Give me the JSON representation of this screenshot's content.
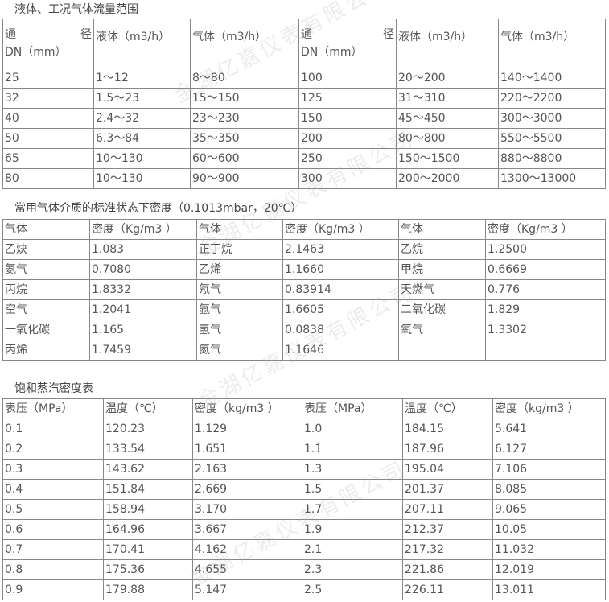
{
  "watermark": "金湖亿嘉仪表有限公司",
  "flow": {
    "title": "液体、工况气体流量范围",
    "headers": {
      "dn_top_left": "通",
      "dn_top_right": "径",
      "dn_bottom": "DN（mm）",
      "liquid": "液体（m3/h）",
      "gas": "气体（m3/h）"
    },
    "rows": [
      [
        "25",
        "1～12",
        "8～80",
        "100",
        "20～200",
        "140～1400"
      ],
      [
        "32",
        "1.5～23",
        "15～150",
        "125",
        "31～310",
        "220～2200"
      ],
      [
        "40",
        "2.4～32",
        "23～230",
        "150",
        "45～450",
        "300～3000"
      ],
      [
        "50",
        "6.3～84",
        "35～350",
        "200",
        "80～800",
        "550～5500"
      ],
      [
        "65",
        "10～130",
        "60～600",
        "250",
        "150～1500",
        "880～8800"
      ],
      [
        "80",
        "10～130",
        "90～900",
        "300",
        "200～2000",
        "1300～13000"
      ]
    ]
  },
  "gas_density": {
    "title": "常用气体介质的标准状态下密度（0.1013mbar，20℃）",
    "headers": [
      "气体",
      "密度（Kg/m3 ）",
      "气体",
      "密度（Kg/m3 ）",
      "气体",
      "密度（Kg/m3 ）"
    ],
    "rows": [
      [
        "乙炔",
        "1.083",
        "正丁烷",
        "2.1463",
        "乙烷",
        "1.2500"
      ],
      [
        "氨气",
        "0.7080",
        "乙烯",
        "1.1660",
        "甲烷",
        "0.6669"
      ],
      [
        "丙烷",
        "1.8332",
        "氖气",
        "0.83914",
        "天燃气",
        "0.776"
      ],
      [
        "空气",
        "1.2041",
        "氩气",
        "1.6605",
        "二氧化碳",
        "1.829"
      ],
      [
        "一氧化碳",
        "1.165",
        "氢气",
        "0.0838",
        "氧气",
        "1.3302"
      ],
      [
        "丙烯",
        "1.7459",
        "氮气",
        "1.1646",
        "",
        ""
      ]
    ]
  },
  "steam": {
    "title": "饱和蒸汽密度表",
    "headers": [
      "表压（MPa）",
      "温度（℃）",
      "密度（kg/m3 ）",
      "表压（MPa）",
      "温度（℃）",
      "密度（kg/m3 ）"
    ],
    "rows": [
      [
        "0.1",
        "120.23",
        "1.129",
        "1.0",
        "184.15",
        "5.641"
      ],
      [
        "0.2",
        "133.54",
        "1.651",
        "1.1",
        "187.96",
        "6.127"
      ],
      [
        "0.3",
        "143.62",
        "2.163",
        "1.3",
        "195.04",
        "7.106"
      ],
      [
        "0.4",
        "151.84",
        "2.669",
        "1.5",
        "201.37",
        "8.085"
      ],
      [
        "0.5",
        "158.94",
        "3.170",
        "1.7",
        "207.11",
        "9.065"
      ],
      [
        "0.6",
        "164.96",
        "3.667",
        "1.9",
        "212.37",
        "10.05"
      ],
      [
        "0.7",
        "170.41",
        "4.162",
        "2.1",
        "217.32",
        "11.032"
      ],
      [
        "0.8",
        "175.36",
        "4.655",
        "2.3",
        "221.86",
        "12.019"
      ],
      [
        "0.9",
        "179.88",
        "5.147",
        "2.5",
        "226.11",
        "13.011"
      ]
    ]
  }
}
